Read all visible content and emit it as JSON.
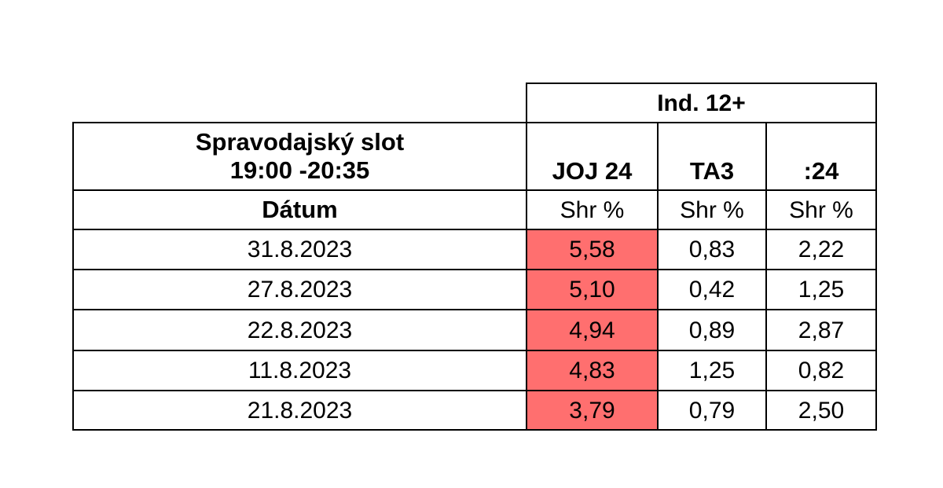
{
  "chart_data": {
    "type": "table",
    "group_header": "Ind. 12+",
    "slot_title_line1": "Spravodajský slot",
    "slot_title_line2": "19:00 -20:35",
    "row_header": "Dátum",
    "channels": [
      "JOJ 24",
      "TA3",
      ":24"
    ],
    "unit_label": "Shr %",
    "highlight_color": "#ff6f6f",
    "rows": [
      {
        "date": "31.8.2023",
        "values": [
          "5,58",
          "0,83",
          "2,22"
        ]
      },
      {
        "date": "27.8.2023",
        "values": [
          "5,10",
          "0,42",
          "1,25"
        ]
      },
      {
        "date": "22.8.2023",
        "values": [
          "4,94",
          "0,89",
          "2,87"
        ]
      },
      {
        "date": "11.8.2023",
        "values": [
          "4,83",
          "1,25",
          "0,82"
        ]
      },
      {
        "date": "21.8.2023",
        "values": [
          "3,79",
          "0,79",
          "2,50"
        ]
      }
    ]
  }
}
